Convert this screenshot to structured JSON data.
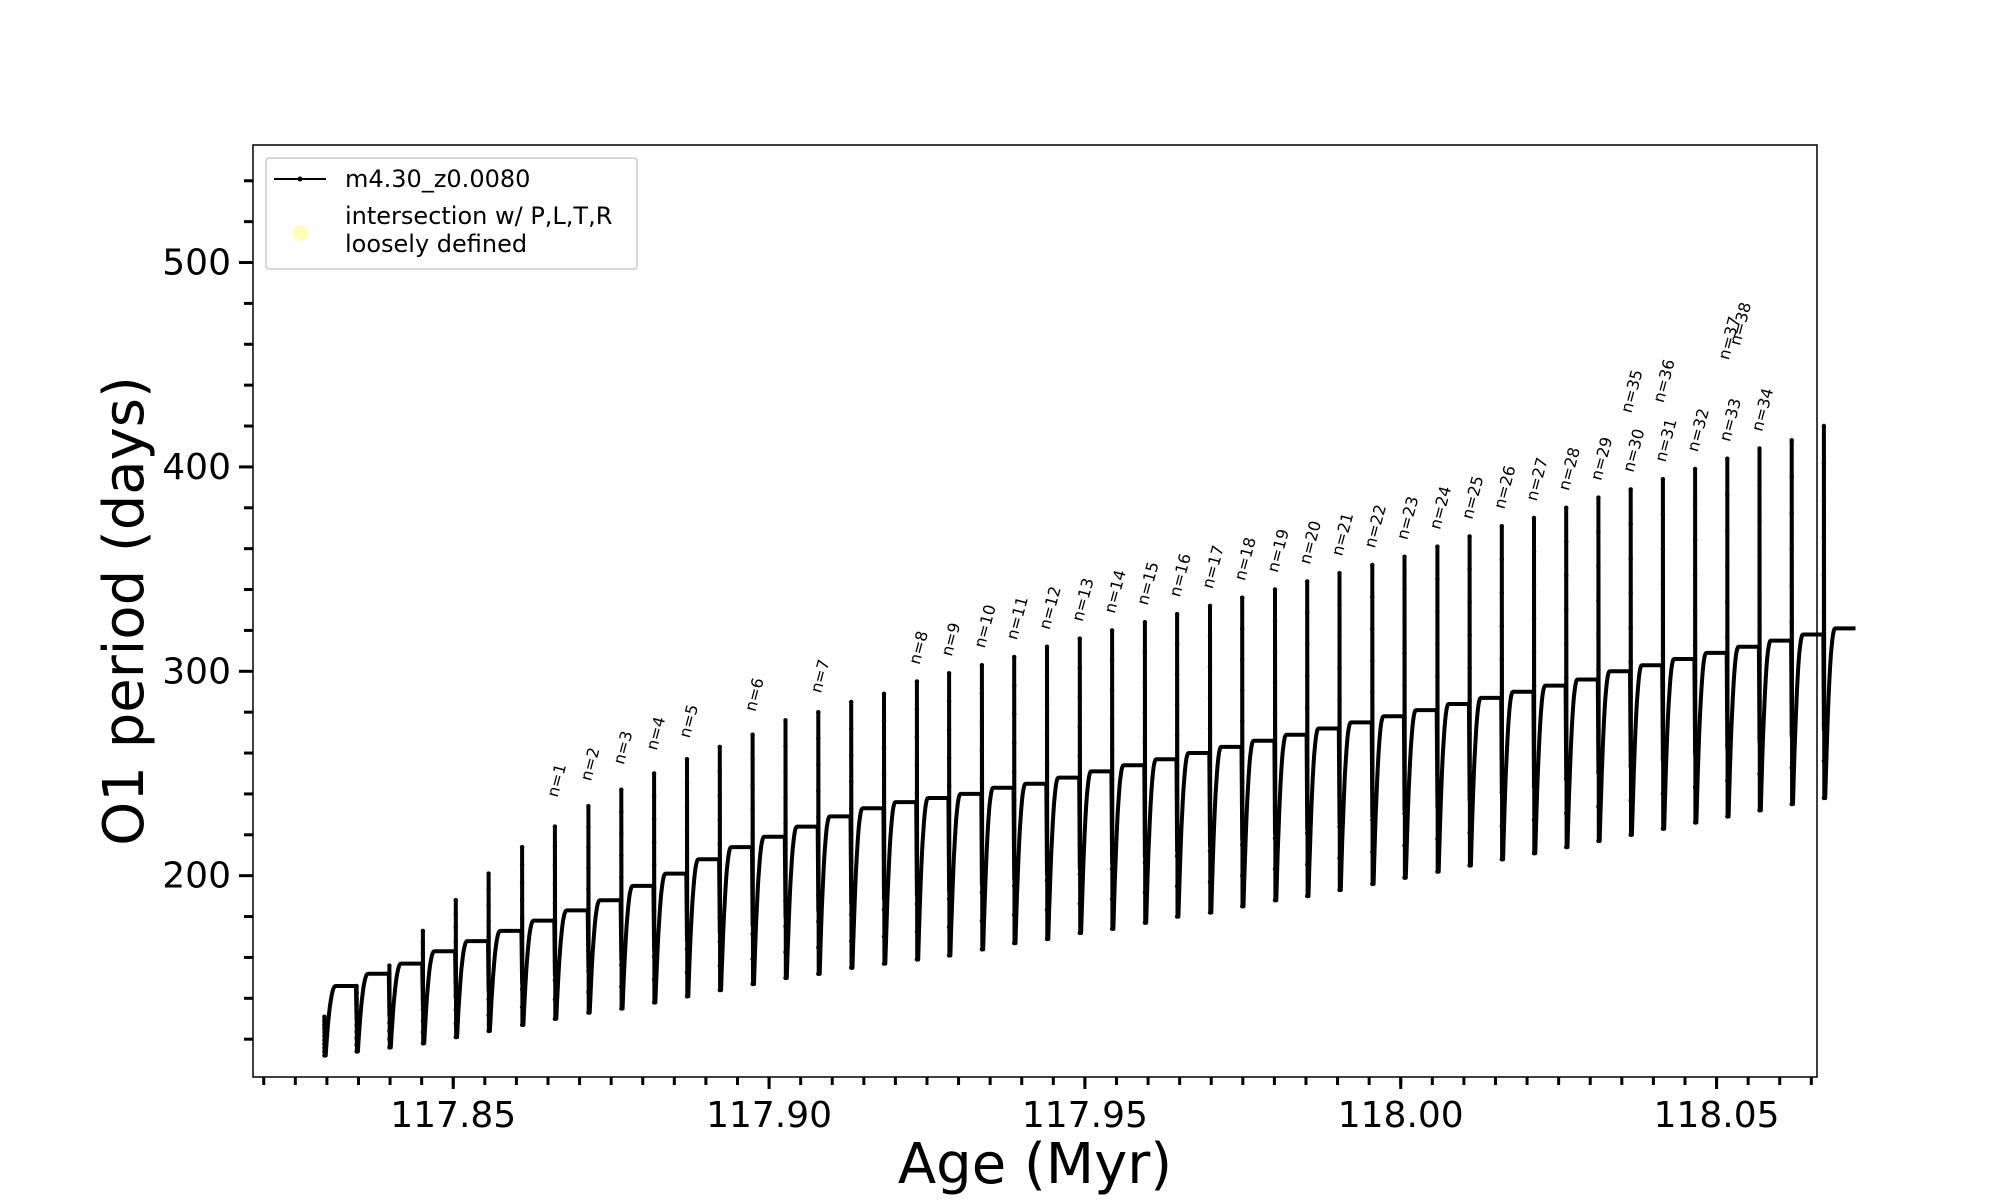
{
  "chart_data": {
    "type": "line",
    "title": "",
    "xlabel": "Age (Myr)",
    "ylabel": "O1 period (days)",
    "xlim": [
      117.8183,
      118.0659
    ],
    "ylim": [
      101.5,
      557.5
    ],
    "x_ticks": [
      117.85,
      117.9,
      117.95,
      118.0,
      118.05
    ],
    "x_tick_labels": [
      "117.85",
      "117.90",
      "117.95",
      "118.00",
      "118.05"
    ],
    "y_ticks": [
      200,
      300,
      400,
      500
    ],
    "y_tick_labels": [
      "200",
      "300",
      "400",
      "500"
    ],
    "grid": false,
    "legend": {
      "placement": "upper-left",
      "entries": [
        {
          "label": "m4.30_z0.0080",
          "marker": "line-with-dots",
          "color": "#000000"
        },
        {
          "label_line1": "intersection w/ P,L,T,R",
          "label_line2": "loosely defined",
          "marker": "circle",
          "color": "#ffffb0"
        }
      ]
    },
    "series": [
      {
        "name": "m4.30_z0.0080",
        "color": "#000000",
        "description_of_shape": "sawtooth: repeated thermal pulses; each pulse = spike up to peak then drop to minimum then recover to plateau",
        "cycles": [
          {
            "x": 117.8296,
            "peak": 131,
            "min": 112,
            "plateau": 146
          },
          {
            "x": 117.8347,
            "peak": 146,
            "min": 114,
            "plateau": 152
          },
          {
            "x": 117.8399,
            "peak": 156,
            "min": 116,
            "plateau": 157
          },
          {
            "x": 117.8452,
            "peak": 173,
            "min": 118,
            "plateau": 163
          },
          {
            "x": 117.8504,
            "peak": 188,
            "min": 121,
            "plateau": 168
          },
          {
            "x": 117.8556,
            "peak": 201,
            "min": 124,
            "plateau": 173
          },
          {
            "x": 117.8609,
            "peak": 214,
            "min": 127,
            "plateau": 178
          },
          {
            "x": 117.8661,
            "peak": 224,
            "min": 130,
            "plateau": 183
          },
          {
            "x": 117.8714,
            "peak": 234,
            "min": 133,
            "plateau": 188
          },
          {
            "x": 117.8766,
            "peak": 242,
            "min": 135,
            "plateau": 195
          },
          {
            "x": 117.8818,
            "peak": 250,
            "min": 138,
            "plateau": 201
          },
          {
            "x": 117.887,
            "peak": 257,
            "min": 141,
            "plateau": 208
          },
          {
            "x": 117.8922,
            "peak": 263,
            "min": 144,
            "plateau": 214
          },
          {
            "x": 117.8974,
            "peak": 269,
            "min": 147,
            "plateau": 219
          },
          {
            "x": 117.9026,
            "peak": 276,
            "min": 150,
            "plateau": 224
          },
          {
            "x": 117.9078,
            "peak": 280,
            "min": 152,
            "plateau": 229
          },
          {
            "x": 117.913,
            "peak": 285,
            "min": 155,
            "plateau": 233
          },
          {
            "x": 117.9182,
            "peak": 289,
            "min": 157,
            "plateau": 236
          },
          {
            "x": 117.9234,
            "peak": 295,
            "min": 159,
            "plateau": 238
          },
          {
            "x": 117.9285,
            "peak": 299,
            "min": 161,
            "plateau": 240
          },
          {
            "x": 117.9337,
            "peak": 303,
            "min": 164,
            "plateau": 243
          },
          {
            "x": 117.9388,
            "peak": 307,
            "min": 167,
            "plateau": 245
          },
          {
            "x": 117.944,
            "peak": 312,
            "min": 169,
            "plateau": 248
          },
          {
            "x": 117.9492,
            "peak": 316,
            "min": 172,
            "plateau": 251
          },
          {
            "x": 117.9543,
            "peak": 320,
            "min": 174,
            "plateau": 254
          },
          {
            "x": 117.9595,
            "peak": 324,
            "min": 177,
            "plateau": 257
          },
          {
            "x": 117.9646,
            "peak": 328,
            "min": 180,
            "plateau": 260
          },
          {
            "x": 117.9698,
            "peak": 332,
            "min": 182,
            "plateau": 263
          },
          {
            "x": 117.9749,
            "peak": 336,
            "min": 185,
            "plateau": 266
          },
          {
            "x": 117.9801,
            "peak": 340,
            "min": 188,
            "plateau": 269
          },
          {
            "x": 117.9852,
            "peak": 344,
            "min": 190,
            "plateau": 272
          },
          {
            "x": 117.9903,
            "peak": 348,
            "min": 193,
            "plateau": 275
          },
          {
            "x": 117.9955,
            "peak": 352,
            "min": 196,
            "plateau": 278
          },
          {
            "x": 118.0006,
            "peak": 356,
            "min": 199,
            "plateau": 281
          },
          {
            "x": 118.0058,
            "peak": 361,
            "min": 202,
            "plateau": 284
          },
          {
            "x": 118.0109,
            "peak": 366,
            "min": 205,
            "plateau": 287
          },
          {
            "x": 118.016,
            "peak": 371,
            "min": 208,
            "plateau": 290
          },
          {
            "x": 118.0211,
            "peak": 375,
            "min": 211,
            "plateau": 293
          },
          {
            "x": 118.0262,
            "peak": 380,
            "min": 214,
            "plateau": 296
          },
          {
            "x": 118.0313,
            "peak": 385,
            "min": 217,
            "plateau": 300
          },
          {
            "x": 118.0364,
            "peak": 389,
            "min": 220,
            "plateau": 303
          },
          {
            "x": 118.0415,
            "peak": 394,
            "min": 223,
            "plateau": 306
          },
          {
            "x": 118.0466,
            "peak": 399,
            "min": 226,
            "plateau": 309
          },
          {
            "x": 118.0517,
            "peak": 404,
            "min": 229,
            "plateau": 312
          },
          {
            "x": 118.0568,
            "peak": 409,
            "min": 232,
            "plateau": 315
          },
          {
            "x": 118.0619,
            "peak": 413,
            "min": 235,
            "plateau": 318
          },
          {
            "x": 118.067,
            "peak": 420,
            "min": 238,
            "plateau": 321
          }
        ]
      }
    ],
    "annotations": [
      {
        "text": "n=1",
        "x": 117.8665,
        "y": 238
      },
      {
        "text": "n=2",
        "x": 117.8718,
        "y": 246
      },
      {
        "text": "n=3",
        "x": 117.877,
        "y": 254
      },
      {
        "text": "n=4",
        "x": 117.8822,
        "y": 261
      },
      {
        "text": "n=5",
        "x": 117.8874,
        "y": 267
      },
      {
        "text": "n=6",
        "x": 117.8978,
        "y": 280
      },
      {
        "text": "n=7",
        "x": 117.9082,
        "y": 289
      },
      {
        "text": "n=8",
        "x": 117.9238,
        "y": 303
      },
      {
        "text": "n=9",
        "x": 117.9289,
        "y": 307
      },
      {
        "text": "n=10",
        "x": 117.9341,
        "y": 311
      },
      {
        "text": "n=11",
        "x": 117.9392,
        "y": 315
      },
      {
        "text": "n=12",
        "x": 117.9444,
        "y": 320
      },
      {
        "text": "n=13",
        "x": 117.9496,
        "y": 324
      },
      {
        "text": "n=14",
        "x": 117.9547,
        "y": 328
      },
      {
        "text": "n=15",
        "x": 117.9599,
        "y": 332
      },
      {
        "text": "n=16",
        "x": 117.965,
        "y": 336
      },
      {
        "text": "n=17",
        "x": 117.9702,
        "y": 340
      },
      {
        "text": "n=18",
        "x": 117.9753,
        "y": 344
      },
      {
        "text": "n=19",
        "x": 117.9805,
        "y": 348
      },
      {
        "text": "n=20",
        "x": 117.9856,
        "y": 352
      },
      {
        "text": "n=21",
        "x": 117.9907,
        "y": 356
      },
      {
        "text": "n=22",
        "x": 117.9959,
        "y": 360
      },
      {
        "text": "n=23",
        "x": 118.001,
        "y": 364
      },
      {
        "text": "n=24",
        "x": 118.0062,
        "y": 369
      },
      {
        "text": "n=25",
        "x": 118.0113,
        "y": 374
      },
      {
        "text": "n=26",
        "x": 118.0164,
        "y": 379
      },
      {
        "text": "n=27",
        "x": 118.0215,
        "y": 383
      },
      {
        "text": "n=28",
        "x": 118.0266,
        "y": 388
      },
      {
        "text": "n=29",
        "x": 118.0317,
        "y": 393
      },
      {
        "text": "n=30",
        "x": 118.0368,
        "y": 397
      },
      {
        "text": "n=31",
        "x": 118.0419,
        "y": 402
      },
      {
        "text": "n=32",
        "x": 118.047,
        "y": 407
      },
      {
        "text": "n=33",
        "x": 118.0521,
        "y": 412
      },
      {
        "text": "n=34",
        "x": 118.0572,
        "y": 417
      },
      {
        "text": "n=35",
        "x": 118.0365,
        "y": 426
      },
      {
        "text": "n=36",
        "x": 118.0416,
        "y": 431
      },
      {
        "text": "n=37",
        "x": 118.0519,
        "y": 452
      },
      {
        "text": "n=38",
        "x": 118.0537,
        "y": 459
      }
    ]
  }
}
